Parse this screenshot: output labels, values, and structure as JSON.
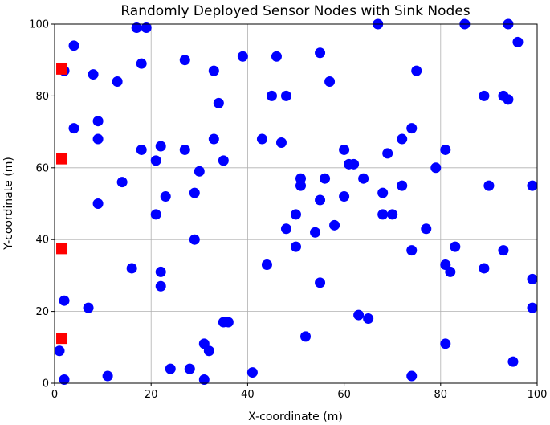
{
  "chart_data": {
    "type": "scatter",
    "title": "Randomly Deployed Sensor Nodes with Sink Nodes",
    "xlabel": "X-coordinate (m)",
    "ylabel": "Y-coordinate (m)",
    "xlim": [
      0,
      100
    ],
    "ylim": [
      0,
      100
    ],
    "xticks": [
      "0",
      "20",
      "40",
      "60",
      "80",
      "100"
    ],
    "yticks": [
      "0",
      "20",
      "40",
      "60",
      "80",
      "100"
    ],
    "grid": true,
    "series": [
      {
        "marker": "circle",
        "color": "#0000ff",
        "points": [
          [
            4,
            94
          ],
          [
            17,
            99
          ],
          [
            19,
            99
          ],
          [
            18,
            89
          ],
          [
            2,
            87
          ],
          [
            8,
            86
          ],
          [
            13,
            84
          ],
          [
            27,
            90
          ],
          [
            33,
            87
          ],
          [
            39,
            91
          ],
          [
            46,
            91
          ],
          [
            55,
            92
          ],
          [
            57,
            84
          ],
          [
            67,
            100
          ],
          [
            75,
            87
          ],
          [
            85,
            100
          ],
          [
            94,
            100
          ],
          [
            96,
            95
          ],
          [
            9,
            73
          ],
          [
            4,
            71
          ],
          [
            9,
            68
          ],
          [
            18,
            65
          ],
          [
            22,
            66
          ],
          [
            27,
            65
          ],
          [
            33,
            68
          ],
          [
            34,
            78
          ],
          [
            45,
            80
          ],
          [
            48,
            80
          ],
          [
            43,
            68
          ],
          [
            47,
            67
          ],
          [
            60,
            65
          ],
          [
            61,
            61
          ],
          [
            62,
            61
          ],
          [
            69,
            64
          ],
          [
            72,
            68
          ],
          [
            74,
            71
          ],
          [
            81,
            65
          ],
          [
            89,
            80
          ],
          [
            93,
            80
          ],
          [
            94,
            79
          ],
          [
            14,
            56
          ],
          [
            9,
            50
          ],
          [
            21,
            62
          ],
          [
            23,
            52
          ],
          [
            21,
            47
          ],
          [
            29,
            53
          ],
          [
            30,
            59
          ],
          [
            35,
            62
          ],
          [
            51,
            57
          ],
          [
            51,
            55
          ],
          [
            55,
            51
          ],
          [
            56,
            57
          ],
          [
            60,
            52
          ],
          [
            64,
            57
          ],
          [
            68,
            53
          ],
          [
            68,
            47
          ],
          [
            70,
            47
          ],
          [
            72,
            55
          ],
          [
            77,
            43
          ],
          [
            79,
            60
          ],
          [
            90,
            55
          ],
          [
            99,
            55
          ],
          [
            16,
            32
          ],
          [
            22,
            31
          ],
          [
            22,
            27
          ],
          [
            29,
            40
          ],
          [
            44,
            33
          ],
          [
            48,
            43
          ],
          [
            50,
            47
          ],
          [
            50,
            38
          ],
          [
            54,
            42
          ],
          [
            58,
            44
          ],
          [
            55,
            28
          ],
          [
            74,
            37
          ],
          [
            81,
            33
          ],
          [
            82,
            31
          ],
          [
            83,
            38
          ],
          [
            89,
            32
          ],
          [
            93,
            37
          ],
          [
            99,
            29
          ],
          [
            2,
            23
          ],
          [
            7,
            21
          ],
          [
            1,
            9
          ],
          [
            2,
            1
          ],
          [
            11,
            2
          ],
          [
            24,
            4
          ],
          [
            28,
            4
          ],
          [
            31,
            11
          ],
          [
            32,
            9
          ],
          [
            31,
            1
          ],
          [
            35,
            17
          ],
          [
            36,
            17
          ],
          [
            41,
            3
          ],
          [
            52,
            13
          ],
          [
            63,
            19
          ],
          [
            65,
            18
          ],
          [
            74,
            2
          ],
          [
            81,
            11
          ],
          [
            95,
            6
          ],
          [
            99,
            21
          ]
        ]
      },
      {
        "marker": "square",
        "color": "#ff0000",
        "points": [
          [
            1.5,
            87.5
          ],
          [
            1.5,
            62.5
          ],
          [
            1.5,
            37.5
          ],
          [
            1.5,
            12.5
          ]
        ]
      }
    ]
  }
}
